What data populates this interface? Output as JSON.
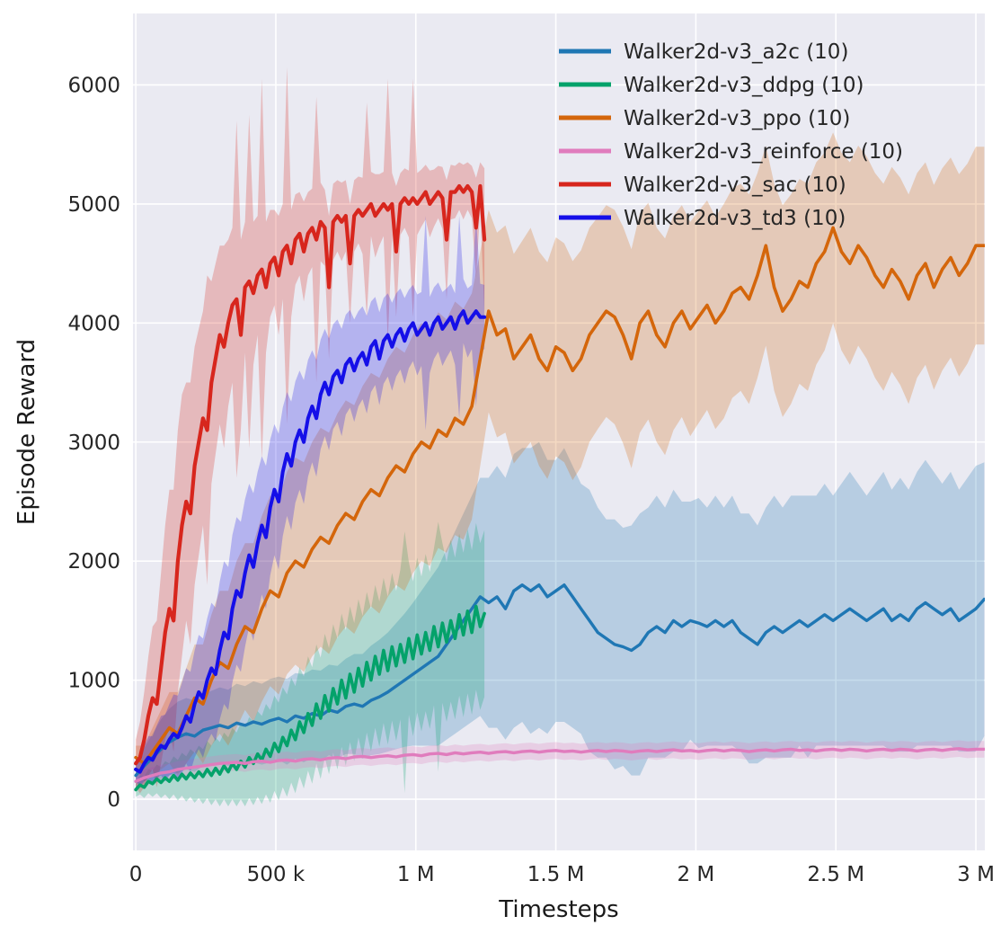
{
  "chart_data": {
    "type": "line",
    "title": "",
    "xlabel": "Timesteps",
    "ylabel": "Episode Reward",
    "grid": true,
    "legend_position": "upper right",
    "plot_bg": "#eaeaf2",
    "grid_color": "#ffffff",
    "tick_color": "#262626",
    "label_color": "#1a1a1a",
    "band_alpha": 0.25,
    "xlim_k": [
      -10,
      3032
    ],
    "ylim": [
      -430,
      6600
    ],
    "x_ticks": [
      {
        "value_k": 0,
        "label": "0"
      },
      {
        "value_k": 500,
        "label": "500 k"
      },
      {
        "value_k": 1000,
        "label": "1 M"
      },
      {
        "value_k": 1500,
        "label": "1.5 M"
      },
      {
        "value_k": 2000,
        "label": "2 M"
      },
      {
        "value_k": 2500,
        "label": "2.5 M"
      },
      {
        "value_k": 3000,
        "label": "3 M"
      }
    ],
    "y_ticks": [
      {
        "value": 0,
        "label": "0"
      },
      {
        "value": 1000,
        "label": "1000"
      },
      {
        "value": 2000,
        "label": "2000"
      },
      {
        "value": 3000,
        "label": "3000"
      },
      {
        "value": 4000,
        "label": "4000"
      },
      {
        "value": 5000,
        "label": "5000"
      },
      {
        "value": 6000,
        "label": "6000"
      }
    ],
    "line_draw_order": [
      "a2c",
      "ddpg",
      "ppo",
      "td3",
      "sac",
      "reinforce"
    ],
    "series": [
      {
        "id": "a2c",
        "label": "Walker2d-v3_a2c (10)",
        "color": "#1f77b4",
        "lw": 3.4,
        "x0_k": 0,
        "dx_k": 30,
        "values": [
          200,
          280,
          350,
          420,
          480,
          520,
          550,
          530,
          580,
          600,
          620,
          600,
          640,
          620,
          650,
          630,
          660,
          680,
          650,
          700,
          680,
          720,
          700,
          750,
          730,
          780,
          800,
          780,
          830,
          860,
          900,
          950,
          1000,
          1050,
          1100,
          1150,
          1200,
          1300,
          1400,
          1500,
          1600,
          1700,
          1650,
          1700,
          1600,
          1750,
          1800,
          1750,
          1800,
          1700,
          1750,
          1800,
          1700,
          1600,
          1500,
          1400,
          1350,
          1300,
          1280,
          1250,
          1300,
          1400,
          1450,
          1400,
          1500,
          1450,
          1500,
          1480,
          1450,
          1500,
          1450,
          1500,
          1400,
          1350,
          1300,
          1400,
          1450,
          1400,
          1450,
          1500,
          1450,
          1500,
          1550,
          1500,
          1550,
          1600,
          1550,
          1500,
          1550,
          1600,
          1500,
          1550,
          1500,
          1600,
          1650,
          1600,
          1550,
          1600,
          1500,
          1550,
          1600,
          1680
        ],
        "spread": [
          100,
          150,
          200,
          250,
          280,
          300,
          300,
          300,
          300,
          310,
          320,
          320,
          330,
          330,
          340,
          340,
          350,
          350,
          360,
          360,
          370,
          370,
          380,
          380,
          390,
          400,
          420,
          440,
          460,
          480,
          500,
          530,
          560,
          600,
          650,
          700,
          750,
          800,
          850,
          900,
          950,
          1000,
          1050,
          1100,
          1100,
          1150,
          1150,
          1200,
          1200,
          1150,
          1100,
          1150,
          1100,
          1050,
          1100,
          1050,
          1000,
          1050,
          1000,
          1050,
          1100,
          1050,
          1100,
          1050,
          1100,
          1050,
          1000,
          1050,
          1000,
          1050,
          1000,
          1050,
          1000,
          1050,
          1000,
          1050,
          1100,
          1050,
          1100,
          1050,
          1100,
          1050,
          1100,
          1050,
          1100,
          1150,
          1100,
          1050,
          1100,
          1150,
          1100,
          1150,
          1100,
          1150,
          1200,
          1150,
          1100,
          1150,
          1100,
          1150,
          1200,
          1150
        ]
      },
      {
        "id": "ddpg",
        "label": "Walker2d-v3_ddpg (10)",
        "color": "#04a26a",
        "lw": 3.6,
        "x0_k": 0,
        "dx_k": 15,
        "values": [
          80,
          120,
          100,
          150,
          130,
          170,
          140,
          180,
          150,
          200,
          160,
          210,
          170,
          220,
          180,
          230,
          190,
          250,
          200,
          260,
          210,
          280,
          230,
          300,
          250,
          320,
          270,
          350,
          300,
          380,
          330,
          420,
          360,
          470,
          400,
          520,
          450,
          580,
          500,
          650,
          560,
          720,
          620,
          800,
          680,
          870,
          740,
          930,
          800,
          1000,
          850,
          1050,
          900,
          1100,
          950,
          1150,
          1000,
          1200,
          1050,
          1250,
          1080,
          1280,
          1120,
          1300,
          1150,
          1350,
          1180,
          1380,
          1220,
          1400,
          1250,
          1450,
          1280,
          1480,
          1320,
          1500,
          1350,
          1550,
          1380,
          1580,
          1400,
          1620,
          1450,
          1560
        ],
        "spread": [
          60,
          80,
          90,
          100,
          110,
          120,
          130,
          140,
          150,
          160,
          170,
          180,
          190,
          200,
          210,
          220,
          230,
          240,
          250,
          260,
          270,
          280,
          290,
          300,
          310,
          320,
          330,
          340,
          350,
          360,
          370,
          380,
          390,
          400,
          410,
          420,
          430,
          440,
          450,
          460,
          470,
          480,
          490,
          500,
          510,
          520,
          530,
          540,
          550,
          560,
          570,
          570,
          580,
          580,
          590,
          590,
          600,
          600,
          610,
          610,
          620,
          620,
          630,
          630,
          1100,
          640,
          650,
          650,
          650,
          660,
          660,
          660,
          1050,
          670,
          670,
          680,
          680,
          680,
          690,
          690,
          690,
          700,
          700,
          700
        ]
      },
      {
        "id": "ppo",
        "label": "Walker2d-v3_ppo (10)",
        "color": "#d4660b",
        "lw": 3.6,
        "x0_k": 0,
        "dx_k": 30,
        "values": [
          350,
          300,
          400,
          500,
          600,
          550,
          700,
          850,
          800,
          1000,
          1150,
          1100,
          1300,
          1450,
          1400,
          1600,
          1750,
          1700,
          1900,
          2000,
          1950,
          2100,
          2200,
          2150,
          2300,
          2400,
          2350,
          2500,
          2600,
          2550,
          2700,
          2800,
          2750,
          2900,
          3000,
          2950,
          3100,
          3050,
          3200,
          3150,
          3300,
          3700,
          4100,
          3900,
          3950,
          3700,
          3800,
          3900,
          3700,
          3600,
          3800,
          3750,
          3600,
          3700,
          3900,
          4000,
          4100,
          4050,
          3900,
          3700,
          4000,
          4100,
          3900,
          3800,
          4000,
          4100,
          3950,
          4050,
          4150,
          4000,
          4100,
          4250,
          4300,
          4200,
          4400,
          4650,
          4300,
          4100,
          4200,
          4350,
          4300,
          4500,
          4600,
          4800,
          4600,
          4500,
          4650,
          4550,
          4400,
          4300,
          4450,
          4350,
          4200,
          4400,
          4500,
          4300,
          4450,
          4550,
          4400,
          4500,
          4650,
          4650
        ],
        "spread": [
          100,
          150,
          200,
          250,
          300,
          350,
          400,
          450,
          500,
          550,
          600,
          650,
          700,
          700,
          750,
          780,
          800,
          820,
          850,
          870,
          880,
          900,
          920,
          930,
          940,
          950,
          960,
          970,
          980,
          990,
          1000,
          1000,
          1000,
          1000,
          1000,
          990,
          990,
          980,
          980,
          970,
          950,
          900,
          850,
          860,
          870,
          880,
          890,
          900,
          900,
          910,
          920,
          920,
          920,
          910,
          900,
          890,
          890,
          900,
          910,
          920,
          920,
          910,
          900,
          910,
          900,
          890,
          900,
          890,
          880,
          890,
          900,
          880,
          870,
          880,
          860,
          840,
          870,
          890,
          880,
          860,
          870,
          850,
          830,
          800,
          830,
          850,
          840,
          850,
          860,
          870,
          860,
          870,
          880,
          860,
          850,
          860,
          850,
          840,
          850,
          840,
          830,
          830
        ]
      },
      {
        "id": "reinforce",
        "label": "Walker2d-v3_reinforce (10)",
        "color": "#e07cbd",
        "lw": 3.4,
        "x0_k": 0,
        "dx_k": 30,
        "values": [
          150,
          180,
          200,
          220,
          230,
          250,
          260,
          270,
          280,
          290,
          300,
          305,
          310,
          300,
          315,
          320,
          310,
          325,
          330,
          320,
          335,
          340,
          330,
          345,
          350,
          340,
          355,
          360,
          350,
          360,
          365,
          355,
          370,
          375,
          365,
          380,
          385,
          375,
          390,
          380,
          390,
          395,
          385,
          395,
          400,
          390,
          400,
          405,
          395,
          405,
          410,
          400,
          405,
          395,
          405,
          410,
          400,
          410,
          405,
          395,
          405,
          410,
          400,
          410,
          415,
          405,
          410,
          400,
          410,
          415,
          405,
          415,
          410,
          400,
          410,
          415,
          405,
          415,
          420,
          410,
          415,
          405,
          415,
          420,
          410,
          420,
          415,
          405,
          415,
          420,
          410,
          420,
          415,
          405,
          415,
          420,
          410,
          420,
          425,
          415,
          420,
          420
        ],
        "spread": 70
      },
      {
        "id": "sac",
        "label": "Walker2d-v3_sac (10)",
        "color": "#d7261d",
        "lw": 4.2,
        "x0_k": 0,
        "dx_k": 15,
        "values": [
          300,
          350,
          500,
          700,
          850,
          800,
          1100,
          1400,
          1600,
          1500,
          2000,
          2300,
          2500,
          2400,
          2800,
          3000,
          3200,
          3100,
          3500,
          3700,
          3900,
          3800,
          4000,
          4150,
          4200,
          3900,
          4300,
          4350,
          4250,
          4400,
          4450,
          4300,
          4500,
          4550,
          4400,
          4600,
          4650,
          4500,
          4700,
          4750,
          4600,
          4750,
          4800,
          4700,
          4850,
          4800,
          4300,
          4850,
          4900,
          4850,
          4900,
          4500,
          4900,
          4950,
          4900,
          4950,
          5000,
          4900,
          4950,
          5000,
          4950,
          5000,
          4600,
          5000,
          5050,
          5000,
          5050,
          5000,
          5050,
          5100,
          5000,
          5050,
          5100,
          5050,
          4700,
          5100,
          5100,
          5150,
          5100,
          5150,
          5100,
          4800,
          5150,
          4700
        ],
        "spread": [
          200,
          300,
          400,
          500,
          600,
          700,
          800,
          900,
          1000,
          1100,
          1100,
          1100,
          1000,
          1100,
          1000,
          950,
          900,
          1300,
          850,
          800,
          750,
          850,
          700,
          650,
          1500,
          800,
          550,
          1400,
          600,
          500,
          1600,
          550,
          450,
          400,
          500,
          400,
          1500,
          450,
          380,
          350,
          420,
          350,
          330,
          1200,
          330,
          320,
          600,
          320,
          300,
          330,
          300,
          500,
          300,
          280,
          320,
          900,
          270,
          350,
          300,
          270,
          1100,
          260,
          550,
          260,
          250,
          280,
          1000,
          260,
          240,
          230,
          280,
          240,
          220,
          260,
          500,
          230,
          220,
          200,
          230,
          200,
          220,
          420,
          200,
          600
        ]
      },
      {
        "id": "td3",
        "label": "Walker2d-v3_td3 (10)",
        "color": "#150fe8",
        "lw": 4.0,
        "x0_k": 0,
        "dx_k": 15,
        "values": [
          250,
          230,
          300,
          350,
          330,
          400,
          450,
          430,
          500,
          550,
          520,
          600,
          700,
          650,
          800,
          900,
          850,
          1000,
          1100,
          1050,
          1250,
          1400,
          1350,
          1600,
          1750,
          1700,
          1900,
          2050,
          1950,
          2150,
          2300,
          2200,
          2450,
          2600,
          2500,
          2750,
          2900,
          2800,
          3000,
          3100,
          3000,
          3200,
          3300,
          3200,
          3400,
          3500,
          3400,
          3550,
          3600,
          3500,
          3650,
          3700,
          3600,
          3700,
          3750,
          3650,
          3800,
          3850,
          3700,
          3850,
          3900,
          3800,
          3900,
          3950,
          3850,
          3950,
          4000,
          3900,
          3950,
          4000,
          3900,
          4000,
          4050,
          3950,
          4000,
          4050,
          3950,
          4050,
          4100,
          4000,
          4050,
          4100,
          4050,
          4050
        ],
        "spread": [
          100,
          120,
          150,
          180,
          200,
          220,
          250,
          280,
          300,
          330,
          350,
          380,
          400,
          420,
          450,
          480,
          500,
          520,
          550,
          560,
          580,
          600,
          600,
          620,
          620,
          630,
          620,
          600,
          620,
          600,
          580,
          600,
          570,
          550,
          570,
          540,
          520,
          540,
          510,
          500,
          520,
          490,
          470,
          490,
          460,
          450,
          470,
          440,
          430,
          450,
          420,
          410,
          430,
          400,
          390,
          410,
          380,
          370,
          390,
          360,
          350,
          370,
          350,
          340,
          360,
          330,
          320,
          340,
          310,
          900,
          320,
          300,
          290,
          310,
          290,
          280,
          300,
          850,
          270,
          290,
          270,
          800,
          280,
          270
        ]
      }
    ]
  }
}
